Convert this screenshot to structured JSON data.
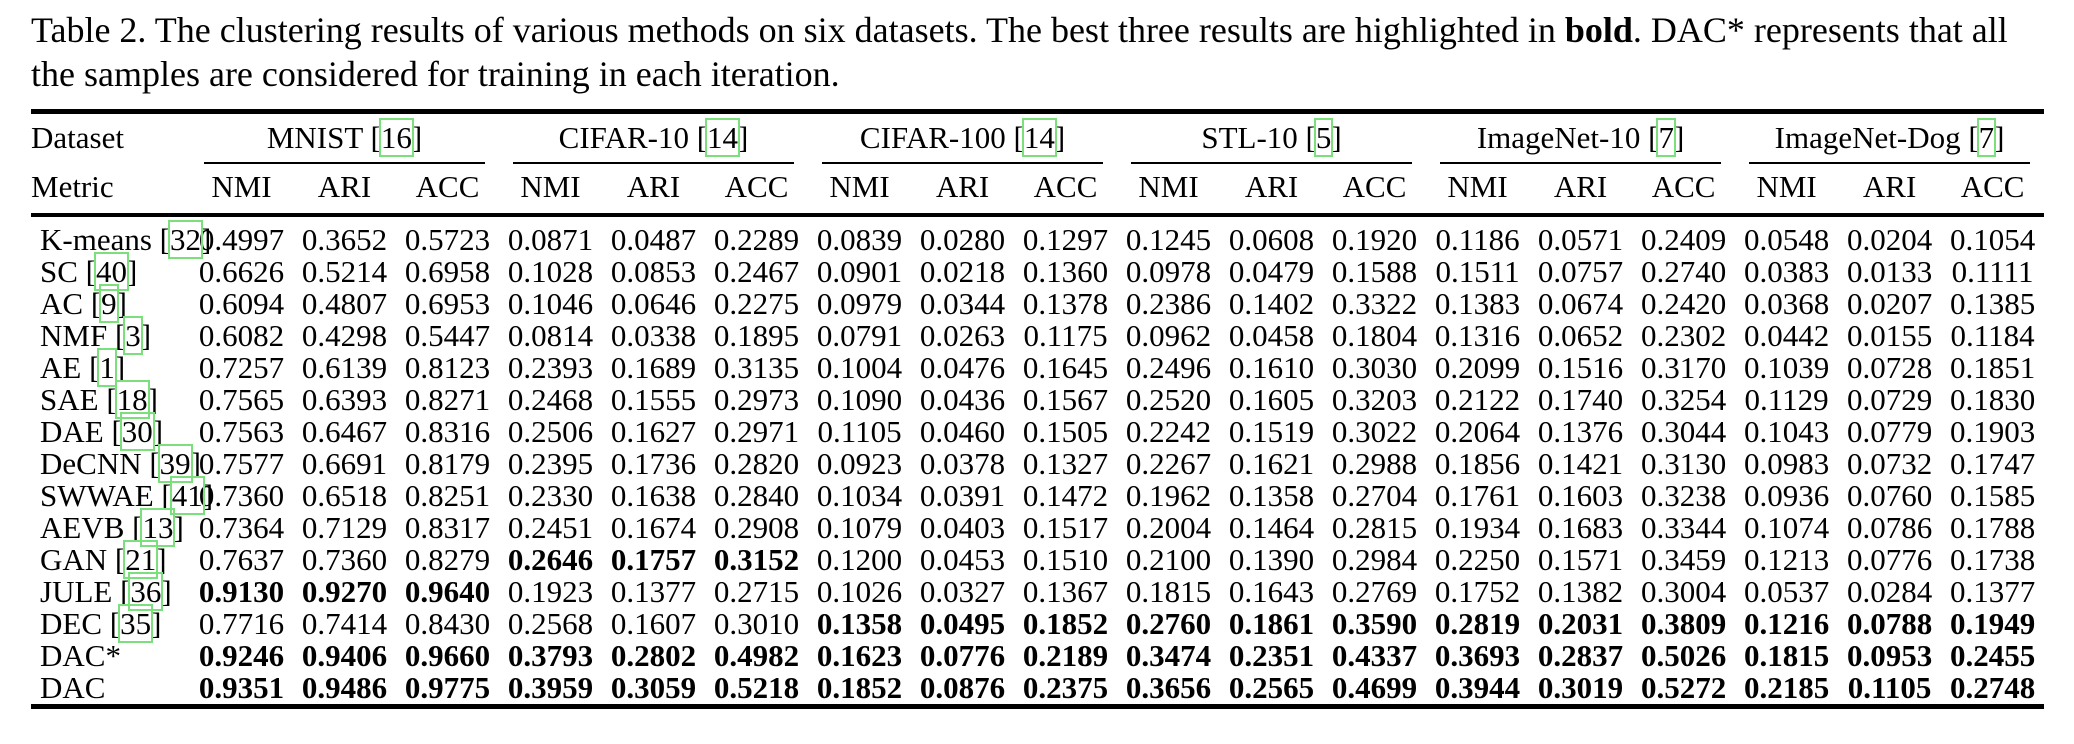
{
  "caption": {
    "line1_pre": "Table 2. The clustering results of various methods on six datasets. The best three results are highlighted in ",
    "line1_bold": "bold",
    "line1_post": ". DAC* represents that all",
    "line2": "the samples are considered for training in each iteration."
  },
  "colors": {
    "citation_box": "#7be07b",
    "text": "#000000",
    "background": "#ffffff"
  },
  "table": {
    "corner_labels": {
      "dataset": "Dataset",
      "metric": "Metric"
    },
    "metrics": [
      "NMI",
      "ARI",
      "ACC"
    ],
    "datasets": [
      {
        "name": "MNIST",
        "cite": "16"
      },
      {
        "name": "CIFAR-10",
        "cite": "14"
      },
      {
        "name": "CIFAR-100",
        "cite": "14"
      },
      {
        "name": "STL-10",
        "cite": "5"
      },
      {
        "name": "ImageNet-10",
        "cite": "7"
      },
      {
        "name": "ImageNet-Dog",
        "cite": "7"
      }
    ],
    "rows": [
      {
        "method": "K-means",
        "cite": "32",
        "bold_groups": [],
        "values": [
          "0.4997",
          "0.3652",
          "0.5723",
          "0.0871",
          "0.0487",
          "0.2289",
          "0.0839",
          "0.0280",
          "0.1297",
          "0.1245",
          "0.0608",
          "0.1920",
          "0.1186",
          "0.0571",
          "0.2409",
          "0.0548",
          "0.0204",
          "0.1054"
        ]
      },
      {
        "method": "SC",
        "cite": "40",
        "bold_groups": [],
        "values": [
          "0.6626",
          "0.5214",
          "0.6958",
          "0.1028",
          "0.0853",
          "0.2467",
          "0.0901",
          "0.0218",
          "0.1360",
          "0.0978",
          "0.0479",
          "0.1588",
          "0.1511",
          "0.0757",
          "0.2740",
          "0.0383",
          "0.0133",
          "0.1111"
        ]
      },
      {
        "method": "AC",
        "cite": "9",
        "bold_groups": [],
        "values": [
          "0.6094",
          "0.4807",
          "0.6953",
          "0.1046",
          "0.0646",
          "0.2275",
          "0.0979",
          "0.0344",
          "0.1378",
          "0.2386",
          "0.1402",
          "0.3322",
          "0.1383",
          "0.0674",
          "0.2420",
          "0.0368",
          "0.0207",
          "0.1385"
        ]
      },
      {
        "method": "NMF",
        "cite": "3",
        "bold_groups": [],
        "values": [
          "0.6082",
          "0.4298",
          "0.5447",
          "0.0814",
          "0.0338",
          "0.1895",
          "0.0791",
          "0.0263",
          "0.1175",
          "0.0962",
          "0.0458",
          "0.1804",
          "0.1316",
          "0.0652",
          "0.2302",
          "0.0442",
          "0.0155",
          "0.1184"
        ]
      },
      {
        "method": "AE",
        "cite": "1",
        "bold_groups": [],
        "values": [
          "0.7257",
          "0.6139",
          "0.8123",
          "0.2393",
          "0.1689",
          "0.3135",
          "0.1004",
          "0.0476",
          "0.1645",
          "0.2496",
          "0.1610",
          "0.3030",
          "0.2099",
          "0.1516",
          "0.3170",
          "0.1039",
          "0.0728",
          "0.1851"
        ]
      },
      {
        "method": "SAE",
        "cite": "18",
        "bold_groups": [],
        "values": [
          "0.7565",
          "0.6393",
          "0.8271",
          "0.2468",
          "0.1555",
          "0.2973",
          "0.1090",
          "0.0436",
          "0.1567",
          "0.2520",
          "0.1605",
          "0.3203",
          "0.2122",
          "0.1740",
          "0.3254",
          "0.1129",
          "0.0729",
          "0.1830"
        ]
      },
      {
        "method": "DAE",
        "cite": "30",
        "bold_groups": [],
        "values": [
          "0.7563",
          "0.6467",
          "0.8316",
          "0.2506",
          "0.1627",
          "0.2971",
          "0.1105",
          "0.0460",
          "0.1505",
          "0.2242",
          "0.1519",
          "0.3022",
          "0.2064",
          "0.1376",
          "0.3044",
          "0.1043",
          "0.0779",
          "0.1903"
        ]
      },
      {
        "method": "DeCNN",
        "cite": "39",
        "bold_groups": [],
        "values": [
          "0.7577",
          "0.6691",
          "0.8179",
          "0.2395",
          "0.1736",
          "0.2820",
          "0.0923",
          "0.0378",
          "0.1327",
          "0.2267",
          "0.1621",
          "0.2988",
          "0.1856",
          "0.1421",
          "0.3130",
          "0.0983",
          "0.0732",
          "0.1747"
        ]
      },
      {
        "method": "SWWAE",
        "cite": "41",
        "bold_groups": [],
        "values": [
          "0.7360",
          "0.6518",
          "0.8251",
          "0.2330",
          "0.1638",
          "0.2840",
          "0.1034",
          "0.0391",
          "0.1472",
          "0.1962",
          "0.1358",
          "0.2704",
          "0.1761",
          "0.1603",
          "0.3238",
          "0.0936",
          "0.0760",
          "0.1585"
        ]
      },
      {
        "method": "AEVB",
        "cite": "13",
        "bold_groups": [],
        "values": [
          "0.7364",
          "0.7129",
          "0.8317",
          "0.2451",
          "0.1674",
          "0.2908",
          "0.1079",
          "0.0403",
          "0.1517",
          "0.2004",
          "0.1464",
          "0.2815",
          "0.1934",
          "0.1683",
          "0.3344",
          "0.1074",
          "0.0786",
          "0.1788"
        ]
      },
      {
        "method": "GAN",
        "cite": "21",
        "bold_groups": [
          1
        ],
        "values": [
          "0.7637",
          "0.7360",
          "0.8279",
          "0.2646",
          "0.1757",
          "0.3152",
          "0.1200",
          "0.0453",
          "0.1510",
          "0.2100",
          "0.1390",
          "0.2984",
          "0.2250",
          "0.1571",
          "0.3459",
          "0.1213",
          "0.0776",
          "0.1738"
        ]
      },
      {
        "method": "JULE",
        "cite": "36",
        "bold_groups": [
          0
        ],
        "values": [
          "0.9130",
          "0.9270",
          "0.9640",
          "0.1923",
          "0.1377",
          "0.2715",
          "0.1026",
          "0.0327",
          "0.1367",
          "0.1815",
          "0.1643",
          "0.2769",
          "0.1752",
          "0.1382",
          "0.3004",
          "0.0537",
          "0.0284",
          "0.1377"
        ]
      },
      {
        "method": "DEC",
        "cite": "35",
        "bold_groups": [
          2,
          3,
          4,
          5
        ],
        "values": [
          "0.7716",
          "0.7414",
          "0.8430",
          "0.2568",
          "0.1607",
          "0.3010",
          "0.1358",
          "0.0495",
          "0.1852",
          "0.2760",
          "0.1861",
          "0.3590",
          "0.2819",
          "0.2031",
          "0.3809",
          "0.1216",
          "0.0788",
          "0.1949"
        ]
      },
      {
        "method": "DAC*",
        "cite": null,
        "bold_groups": [
          0,
          1,
          2,
          3,
          4,
          5
        ],
        "values": [
          "0.9246",
          "0.9406",
          "0.9660",
          "0.3793",
          "0.2802",
          "0.4982",
          "0.1623",
          "0.0776",
          "0.2189",
          "0.3474",
          "0.2351",
          "0.4337",
          "0.3693",
          "0.2837",
          "0.5026",
          "0.1815",
          "0.0953",
          "0.2455"
        ]
      },
      {
        "method": "DAC",
        "cite": null,
        "bold_groups": [
          0,
          1,
          2,
          3,
          4,
          5
        ],
        "values": [
          "0.9351",
          "0.9486",
          "0.9775",
          "0.3959",
          "0.3059",
          "0.5218",
          "0.1852",
          "0.0876",
          "0.2375",
          "0.3656",
          "0.2565",
          "0.4699",
          "0.3944",
          "0.3019",
          "0.5272",
          "0.2185",
          "0.1105",
          "0.2748"
        ]
      }
    ]
  }
}
